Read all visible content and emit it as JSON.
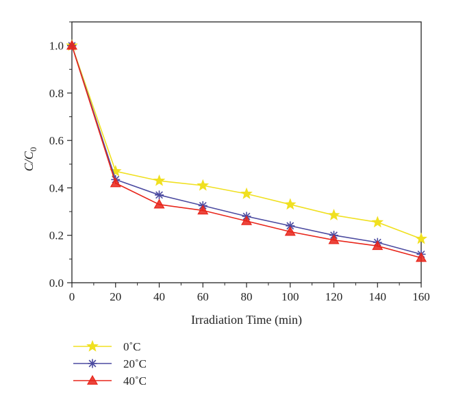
{
  "chart_data": {
    "type": "line",
    "title": "",
    "xlabel": "Irradiation Time (min)",
    "ylabel_main": "C/C",
    "ylabel_sub": "0",
    "xlim": [
      0,
      160
    ],
    "ylim": [
      0,
      1.1
    ],
    "x_ticks": [
      0,
      20,
      40,
      60,
      80,
      100,
      120,
      140,
      160
    ],
    "y_ticks": [
      0.0,
      0.2,
      0.4,
      0.6,
      0.8,
      1.0
    ],
    "y_tick_labels": [
      "0.0",
      "0.2",
      "0.4",
      "0.6",
      "0.8",
      "1.0"
    ],
    "grid": false,
    "legend_position": "below-left",
    "x": [
      0,
      20,
      40,
      60,
      80,
      100,
      120,
      140,
      160
    ],
    "series": [
      {
        "name": "0˚C",
        "marker": "star",
        "color": "#f0e020",
        "values": [
          1.0,
          0.47,
          0.43,
          0.41,
          0.375,
          0.33,
          0.285,
          0.255,
          0.185
        ]
      },
      {
        "name": "20˚C",
        "marker": "asterisk",
        "color": "#4b4aa0",
        "values": [
          1.0,
          0.435,
          0.37,
          0.325,
          0.28,
          0.24,
          0.2,
          0.17,
          0.12
        ]
      },
      {
        "name": "40˚C",
        "marker": "triangle",
        "color": "#e8251a",
        "values": [
          1.0,
          0.42,
          0.33,
          0.305,
          0.26,
          0.215,
          0.18,
          0.155,
          0.105
        ]
      }
    ]
  }
}
